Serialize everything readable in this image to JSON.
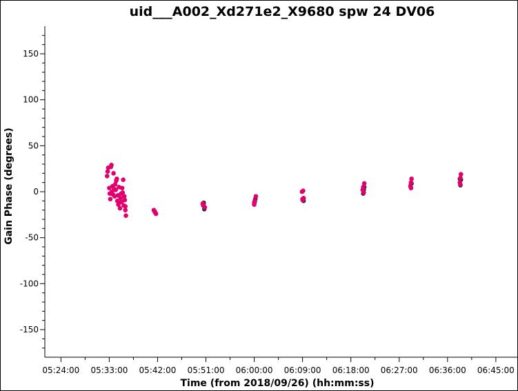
{
  "chart_data": {
    "type": "scatter",
    "title": "uid___A002_Xd271e2_X9680 spw 24 DV06",
    "xlabel": "Time (from 2018/09/26) (hh:mm:ss)",
    "ylabel": "Gain Phase (degrees)",
    "x_unit": "minutes after 00:00 on 2018/09/26",
    "xlim": [
      321.0,
      409.0
    ],
    "ylim": [
      -180,
      180
    ],
    "x_ticks": [
      {
        "value": 324,
        "label": "05:24:00"
      },
      {
        "value": 333,
        "label": "05:33:00"
      },
      {
        "value": 342,
        "label": "05:42:00"
      },
      {
        "value": 351,
        "label": "05:51:00"
      },
      {
        "value": 360,
        "label": "06:00:00"
      },
      {
        "value": 369,
        "label": "06:09:00"
      },
      {
        "value": 378,
        "label": "06:18:00"
      },
      {
        "value": 387,
        "label": "06:27:00"
      },
      {
        "value": 396,
        "label": "06:36:00"
      },
      {
        "value": 405,
        "label": "06:45:00"
      }
    ],
    "y_ticks": [
      150,
      100,
      50,
      0,
      -50,
      -100,
      -150
    ],
    "grid": false,
    "colors": {
      "series_1": "#e0006e",
      "series_2": "#333333"
    },
    "series": [
      {
        "points": [
          [
            341.3,
            -20
          ],
          [
            341.5,
            -22
          ],
          [
            341.7,
            -24
          ],
          [
            350.4,
            -13
          ],
          [
            350.6,
            -15
          ],
          [
            350.8,
            -17
          ],
          [
            360.0,
            -12
          ],
          [
            360.1,
            -10
          ],
          [
            360.3,
            -5
          ],
          [
            360.0,
            -14
          ],
          [
            368.9,
            0
          ],
          [
            369.1,
            1
          ],
          [
            369.0,
            -9
          ],
          [
            369.2,
            -7
          ],
          [
            380.2,
            2
          ],
          [
            380.3,
            5
          ],
          [
            380.5,
            9
          ],
          [
            380.4,
            -1
          ],
          [
            389.1,
            6
          ],
          [
            389.2,
            10
          ],
          [
            389.3,
            14
          ],
          [
            389.2,
            4
          ],
          [
            398.3,
            10
          ],
          [
            398.4,
            15
          ],
          [
            398.5,
            19
          ],
          [
            398.4,
            8
          ],
          [
            332.6,
            17
          ],
          [
            332.7,
            22
          ],
          [
            332.8,
            26
          ],
          [
            333.0,
            4
          ],
          [
            333.1,
            -2
          ],
          [
            333.2,
            -8
          ],
          [
            333.3,
            27
          ],
          [
            333.4,
            29
          ],
          [
            333.5,
            0
          ],
          [
            333.6,
            6
          ],
          [
            333.7,
            -3
          ],
          [
            333.8,
            20
          ],
          [
            333.9,
            3
          ],
          [
            334.0,
            -5
          ],
          [
            334.1,
            8
          ],
          [
            334.2,
            2
          ],
          [
            334.3,
            12
          ],
          [
            334.4,
            14
          ],
          [
            334.5,
            -10
          ],
          [
            334.6,
            -4
          ],
          [
            334.7,
            -14
          ],
          [
            334.8,
            5
          ],
          [
            334.9,
            -12
          ],
          [
            335.0,
            -18
          ],
          [
            335.1,
            -7
          ],
          [
            335.2,
            -2
          ],
          [
            335.3,
            -11
          ],
          [
            335.4,
            4
          ],
          [
            335.5,
            -1
          ],
          [
            335.6,
            13
          ],
          [
            335.7,
            -15
          ],
          [
            335.8,
            -5
          ],
          [
            335.9,
            -9
          ],
          [
            336.0,
            -16
          ],
          [
            336.1,
            -26
          ],
          [
            336.0,
            -20
          ]
        ]
      },
      {
        "points": [
          [
            341.4,
            -21
          ],
          [
            341.6,
            -23
          ],
          [
            350.5,
            -15
          ],
          [
            350.7,
            -19
          ],
          [
            350.6,
            -12
          ],
          [
            360.1,
            -11
          ],
          [
            360.2,
            -8
          ],
          [
            369.0,
            -8
          ],
          [
            369.2,
            -10
          ],
          [
            380.3,
            -2
          ],
          [
            380.4,
            2
          ],
          [
            380.5,
            5
          ],
          [
            389.2,
            8
          ],
          [
            389.3,
            9
          ],
          [
            389.1,
            6
          ],
          [
            398.4,
            7
          ],
          [
            398.5,
            13
          ],
          [
            398.3,
            14
          ]
        ]
      }
    ]
  }
}
